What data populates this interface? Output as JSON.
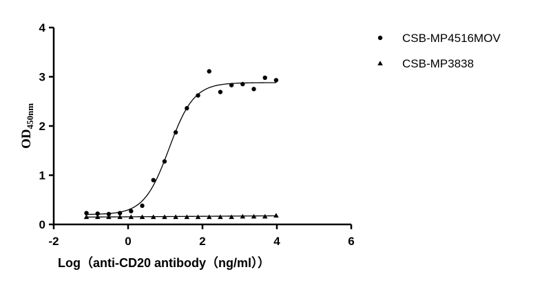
{
  "chart_data": {
    "type": "scatter",
    "xlabel": "Log（anti-CD20 antibody（ng/ml））",
    "ylabel_main": "OD",
    "ylabel_sub": "450nm",
    "xlim": [
      -2,
      6
    ],
    "ylim": [
      0,
      4
    ],
    "xticks": [
      "-2",
      "0",
      "2",
      "4",
      "6"
    ],
    "yticks": [
      "0",
      "1",
      "2",
      "3",
      "4"
    ],
    "legend_position": "top-right",
    "series": [
      {
        "name": "CSB-MP4516MOV",
        "marker": "circle",
        "color": "#000000",
        "x": [
          -1.12,
          -0.82,
          -0.52,
          -0.22,
          0.08,
          0.38,
          0.68,
          0.98,
          1.28,
          1.58,
          1.88,
          2.18,
          2.48,
          2.78,
          3.08,
          3.38,
          3.68,
          3.98
        ],
        "y": [
          0.23,
          0.22,
          0.21,
          0.23,
          0.27,
          0.38,
          0.9,
          1.28,
          1.87,
          2.36,
          2.62,
          3.11,
          2.69,
          2.83,
          2.85,
          2.75,
          2.98,
          2.93
        ],
        "fit": {
          "bottom": 0.2,
          "top": 2.88,
          "logEC50": 1.1,
          "hill": 1.3
        }
      },
      {
        "name": "CSB-MP3838",
        "marker": "triangle",
        "color": "#000000",
        "x": [
          -1.12,
          -0.82,
          -0.52,
          -0.22,
          0.08,
          0.38,
          0.68,
          0.98,
          1.28,
          1.58,
          1.88,
          2.18,
          2.48,
          2.78,
          3.08,
          3.38,
          3.68,
          3.98
        ],
        "y": [
          0.15,
          0.15,
          0.15,
          0.15,
          0.15,
          0.15,
          0.15,
          0.15,
          0.15,
          0.15,
          0.15,
          0.15,
          0.15,
          0.15,
          0.16,
          0.16,
          0.16,
          0.18
        ],
        "fit": {
          "slope": 0.005,
          "intercept": 0.155
        }
      }
    ]
  }
}
